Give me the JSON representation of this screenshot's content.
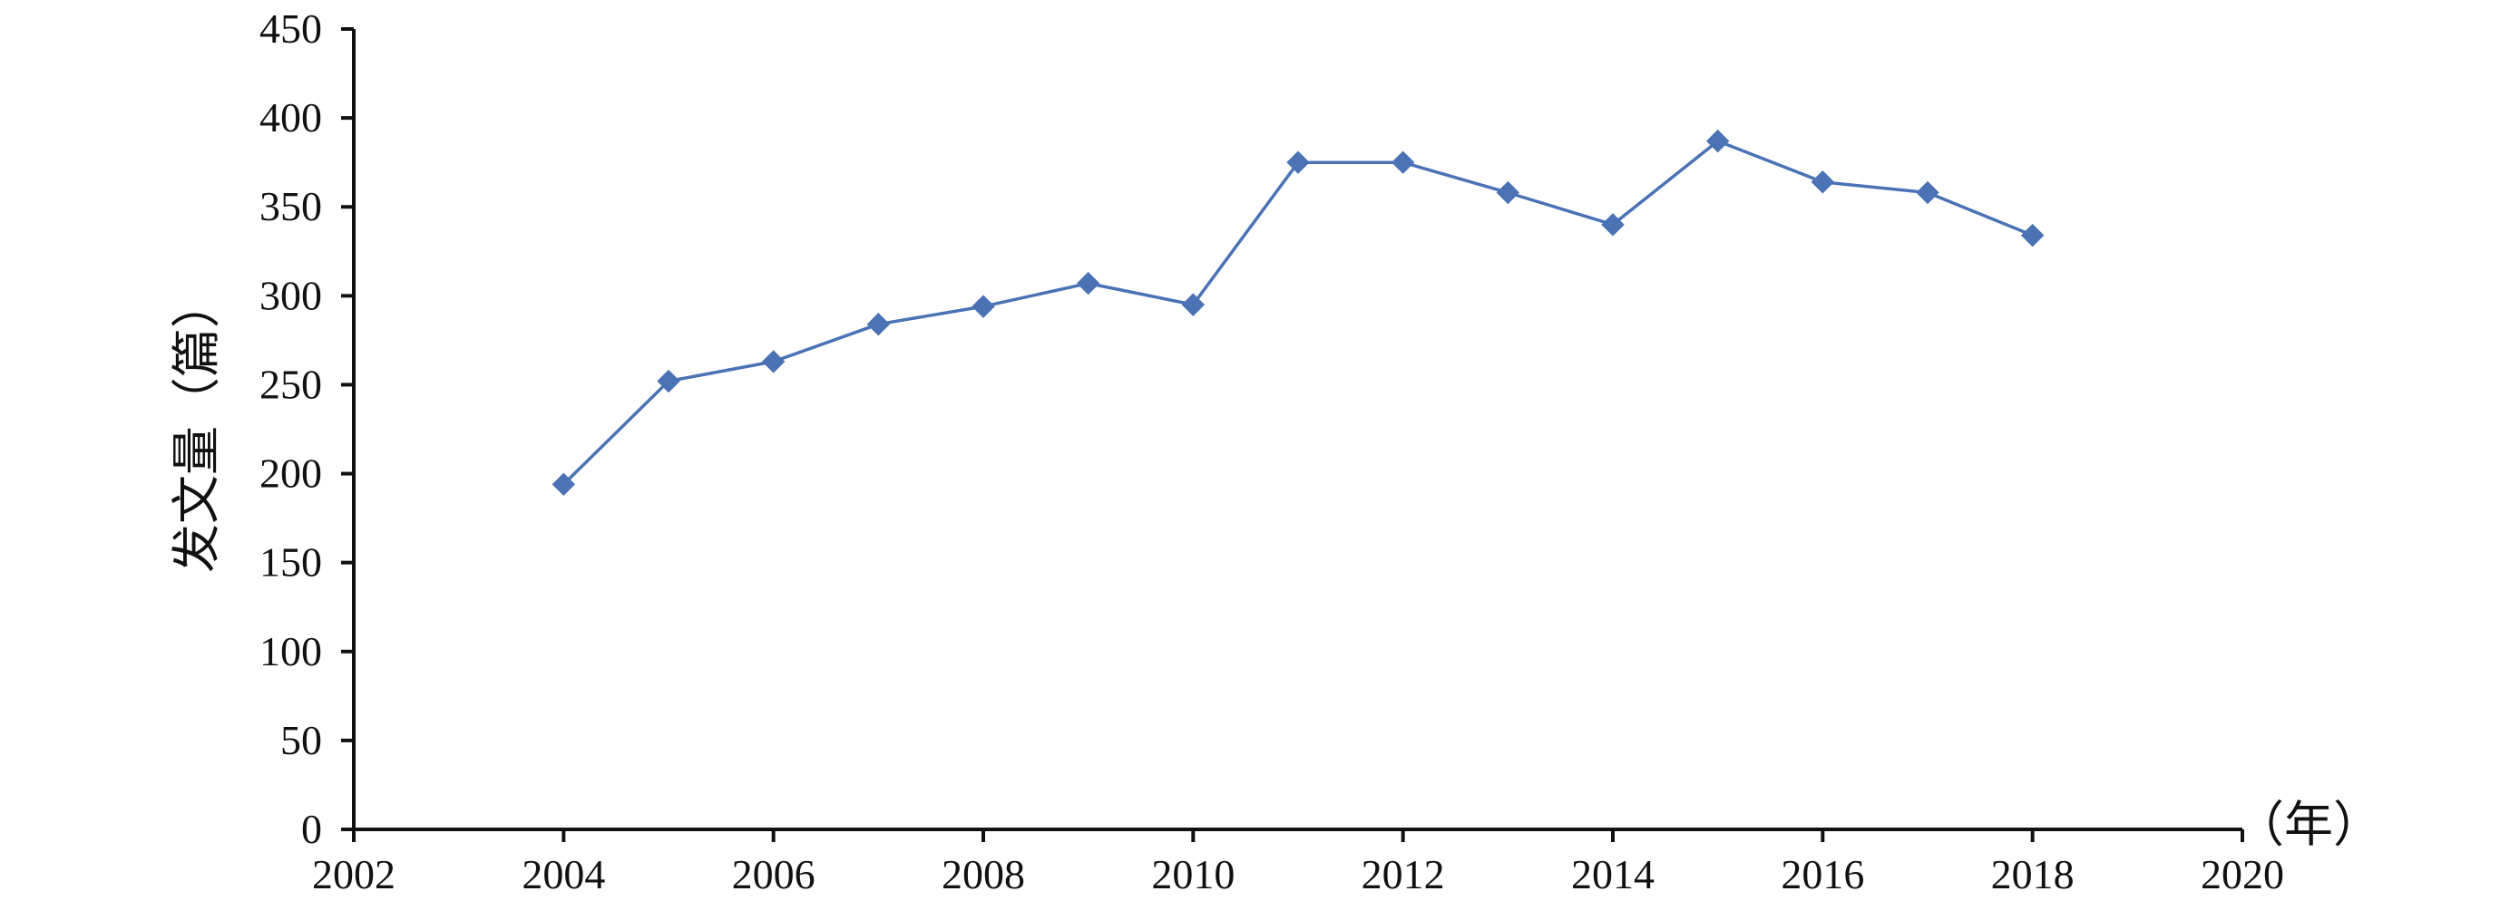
{
  "chart_data": {
    "type": "line",
    "title": "",
    "xlabel": "（年）",
    "ylabel": "发文量（篇）",
    "xlim": [
      2002,
      2020
    ],
    "ylim": [
      0,
      450
    ],
    "xticks": [
      2002,
      2004,
      2006,
      2008,
      2010,
      2012,
      2014,
      2016,
      2018,
      2020
    ],
    "yticks": [
      0,
      50,
      100,
      150,
      200,
      250,
      300,
      350,
      400,
      450
    ],
    "grid": false,
    "legend": "none",
    "series": [
      {
        "color": "#4a72b4",
        "marker": "diamond",
        "x": [
          2004,
          2005,
          2006,
          2007,
          2008,
          2009,
          2010,
          2011,
          2012,
          2013,
          2014,
          2015,
          2016,
          2017,
          2018
        ],
        "y": [
          194,
          252,
          263,
          284,
          294,
          307,
          295,
          375,
          375,
          358,
          340,
          387,
          364,
          358,
          334
        ]
      }
    ]
  }
}
